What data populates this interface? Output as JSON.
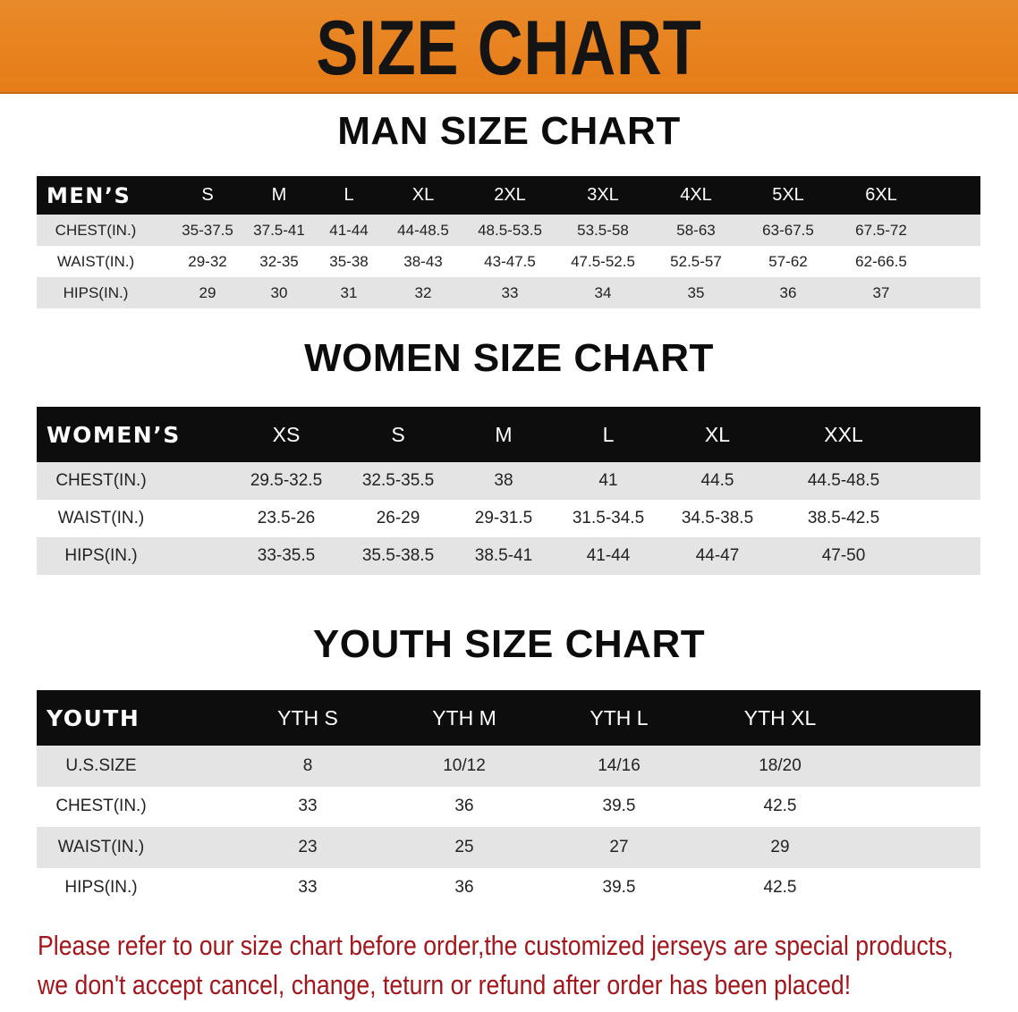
{
  "banner": {
    "title": "SIZE CHART",
    "color": "#e67c17"
  },
  "men": {
    "title": "MAN SIZE CHART",
    "header": [
      "MEN’S",
      "S",
      "M",
      "L",
      "XL",
      "2XL",
      "3XL",
      "4XL",
      "5XL",
      "6XL"
    ],
    "rows": [
      [
        "CHEST(IN.)",
        "35-37.5",
        "37.5-41",
        "41-44",
        "44-48.5",
        "48.5-53.5",
        "53.5-58",
        "58-63",
        "63-67.5",
        "67.5-72"
      ],
      [
        "WAIST(IN.)",
        "29-32",
        "32-35",
        "35-38",
        "38-43",
        "43-47.5",
        "47.5-52.5",
        "52.5-57",
        "57-62",
        "62-66.5"
      ],
      [
        "HIPS(IN.)",
        "29",
        "30",
        "31",
        "32",
        "33",
        "34",
        "35",
        "36",
        "37"
      ]
    ]
  },
  "women": {
    "title": "WOMEN SIZE CHART",
    "header": [
      "WOMEN’S",
      "XS",
      "S",
      "M",
      "L",
      "XL",
      "XXL"
    ],
    "rows": [
      [
        "CHEST(IN.)",
        "29.5-32.5",
        "32.5-35.5",
        "38",
        "41",
        "44.5",
        "44.5-48.5"
      ],
      [
        "WAIST(IN.)",
        "23.5-26",
        "26-29",
        "29-31.5",
        "31.5-34.5",
        "34.5-38.5",
        "38.5-42.5"
      ],
      [
        "HIPS(IN.)",
        "33-35.5",
        "35.5-38.5",
        "38.5-41",
        "41-44",
        "44-47",
        "47-50"
      ]
    ]
  },
  "youth": {
    "title": "YOUTH SIZE CHART",
    "header": [
      "YOUTH",
      "YTH S",
      "YTH M",
      "YTH L",
      "YTH XL"
    ],
    "rows": [
      [
        "U.S.SIZE",
        "8",
        "10/12",
        "14/16",
        "18/20"
      ],
      [
        "CHEST(IN.)",
        "33",
        "36",
        "39.5",
        "42.5"
      ],
      [
        "WAIST(IN.)",
        "23",
        "25",
        "27",
        "29"
      ],
      [
        "HIPS(IN.)",
        "33",
        "36",
        "39.5",
        "42.5"
      ]
    ]
  },
  "note": {
    "line1": "Please refer to our size chart before order,the customized jerseys are special products,",
    "line2": "we don't accept cancel, change, teturn or refund after order has been placed!",
    "color": "#a3161c"
  }
}
